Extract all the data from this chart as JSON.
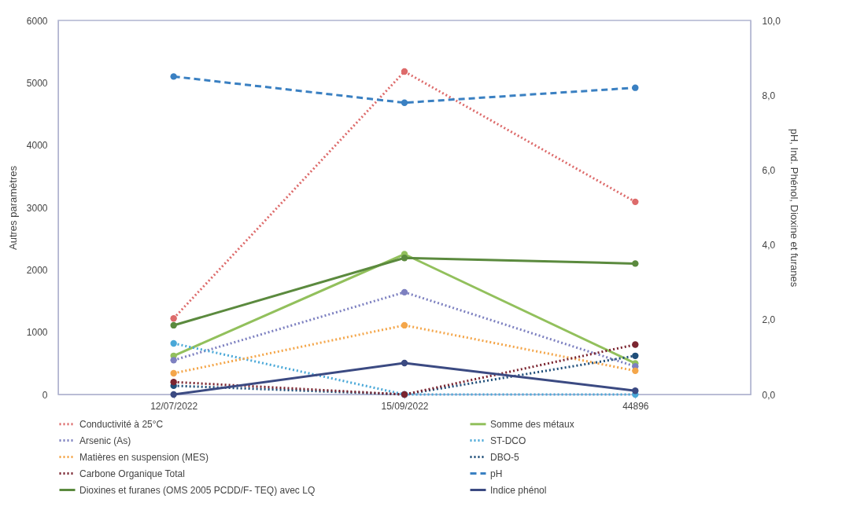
{
  "chart_data": {
    "type": "line",
    "ylabel": "Autres paramètres",
    "y2label": "pH, Ind. Phénol, Dioxine et furanes",
    "categories": [
      "12/07/2022",
      "15/09/2022",
      "44896"
    ],
    "ylim": [
      0,
      6000
    ],
    "yticks": [
      0,
      1000,
      2000,
      3000,
      4000,
      5000,
      6000
    ],
    "y2lim": [
      0,
      10
    ],
    "y2ticks": [
      {
        "value": 0,
        "label": "0,0"
      },
      {
        "value": 2,
        "label": "2,0"
      },
      {
        "value": 4,
        "label": "4,0"
      },
      {
        "value": 6,
        "label": "6,0"
      },
      {
        "value": 8,
        "label": "8,0"
      },
      {
        "value": 10,
        "label": "10,0"
      }
    ],
    "grid": false,
    "legend": "bottom",
    "marker": "circle",
    "series": [
      {
        "name": "Conductivité à 25°C",
        "color": "#dd6b6b",
        "line_style": "dotted",
        "values": [
          1220,
          5180,
          3090
        ]
      },
      {
        "name": "Somme des métaux",
        "color": "#92c05c",
        "line_style": "solid",
        "values": [
          620,
          2250,
          500
        ]
      },
      {
        "name": "Arsenic (As)",
        "color": "#7d80c0",
        "line_style": "dotted",
        "values": [
          550,
          1640,
          450
        ]
      },
      {
        "name": "ST-DCO",
        "color": "#4aa8d8",
        "line_style": "dotted",
        "values": [
          820,
          0,
          0
        ]
      },
      {
        "name": "Matières en suspension (MES)",
        "color": "#f4a64a",
        "line_style": "dotted",
        "values": [
          340,
          1110,
          380
        ]
      },
      {
        "name": "DBO-5",
        "color": "#1f4e79",
        "line_style": "dotted",
        "values": [
          140,
          0,
          620
        ]
      },
      {
        "name": "Carbone Organique Total",
        "color": "#7b2530",
        "line_style": "dotted",
        "values": [
          200,
          0,
          800
        ]
      },
      {
        "name": "pH",
        "color": "#3a80c2",
        "line_style": "dashed",
        "axis": "y2",
        "values": [
          8.5,
          7.8,
          8.2
        ]
      },
      {
        "name": "Dioxines et furanes (OMS 2005 PCDD/F- TEQ) avec LQ",
        "color": "#5b8a3e",
        "line_style": "solid",
        "axis": "y2",
        "values": [
          1.85,
          3.65,
          3.5
        ]
      },
      {
        "name": "Indice phénol",
        "color": "#3b4a82",
        "line_style": "solid",
        "axis": "y2",
        "values": [
          0,
          0.84,
          0.1
        ]
      }
    ]
  }
}
